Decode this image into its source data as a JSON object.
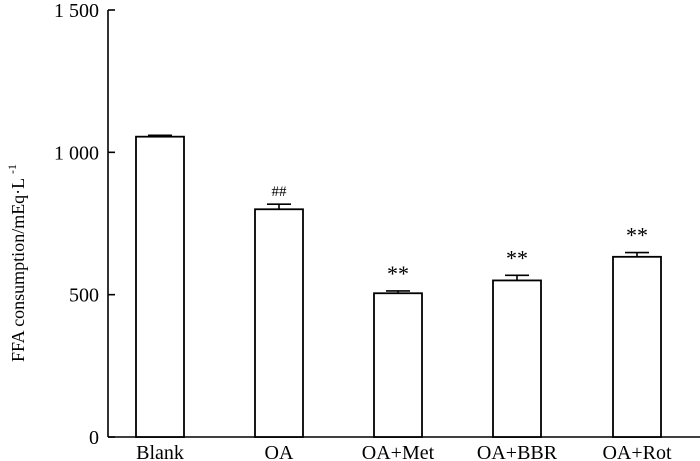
{
  "chart_data": {
    "type": "bar",
    "title": "",
    "xlabel": "",
    "ylabel": "FFA consumption/mEq·L",
    "ylabel_superscript": "-1",
    "categories": [
      "Blank",
      "OA",
      "OA+Met",
      "OA+BBR",
      "OA+Rot"
    ],
    "values": [
      1055,
      800,
      505,
      550,
      633
    ],
    "errors": [
      5,
      18,
      8,
      18,
      15
    ],
    "significance": [
      "",
      "##",
      "**",
      "**",
      "**"
    ],
    "ylim": [
      0,
      1500
    ],
    "y_ticks": [
      0,
      500,
      1000,
      1500
    ],
    "y_tick_labels": [
      "0",
      "500",
      "1 000",
      "1 500"
    ],
    "grid": false,
    "legend": "none",
    "bar_fill": "#ffffff",
    "bar_edge": "#000000"
  }
}
